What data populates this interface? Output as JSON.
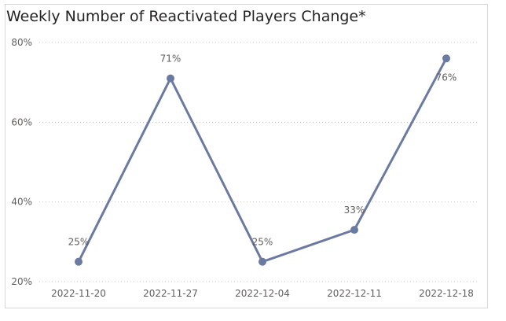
{
  "chart_data": {
    "type": "line",
    "title": "Weekly Number of Reactivated Players Change*",
    "xlabel": "",
    "ylabel": "",
    "categories": [
      "2022-11-20",
      "2022-11-27",
      "2022-12-04",
      "2022-12-11",
      "2022-12-18"
    ],
    "series": [
      {
        "values": [
          25,
          71,
          25,
          33,
          76
        ],
        "labels": [
          "25%",
          "71%",
          "25%",
          "33%",
          "76%"
        ],
        "color": "#6b7aa1"
      }
    ],
    "ylim": [
      20,
      80
    ],
    "yticks": [
      20,
      40,
      60,
      80
    ],
    "ytick_labels": [
      "20%",
      "40%",
      "60%",
      "80%"
    ],
    "grid": true,
    "legend": "none"
  }
}
